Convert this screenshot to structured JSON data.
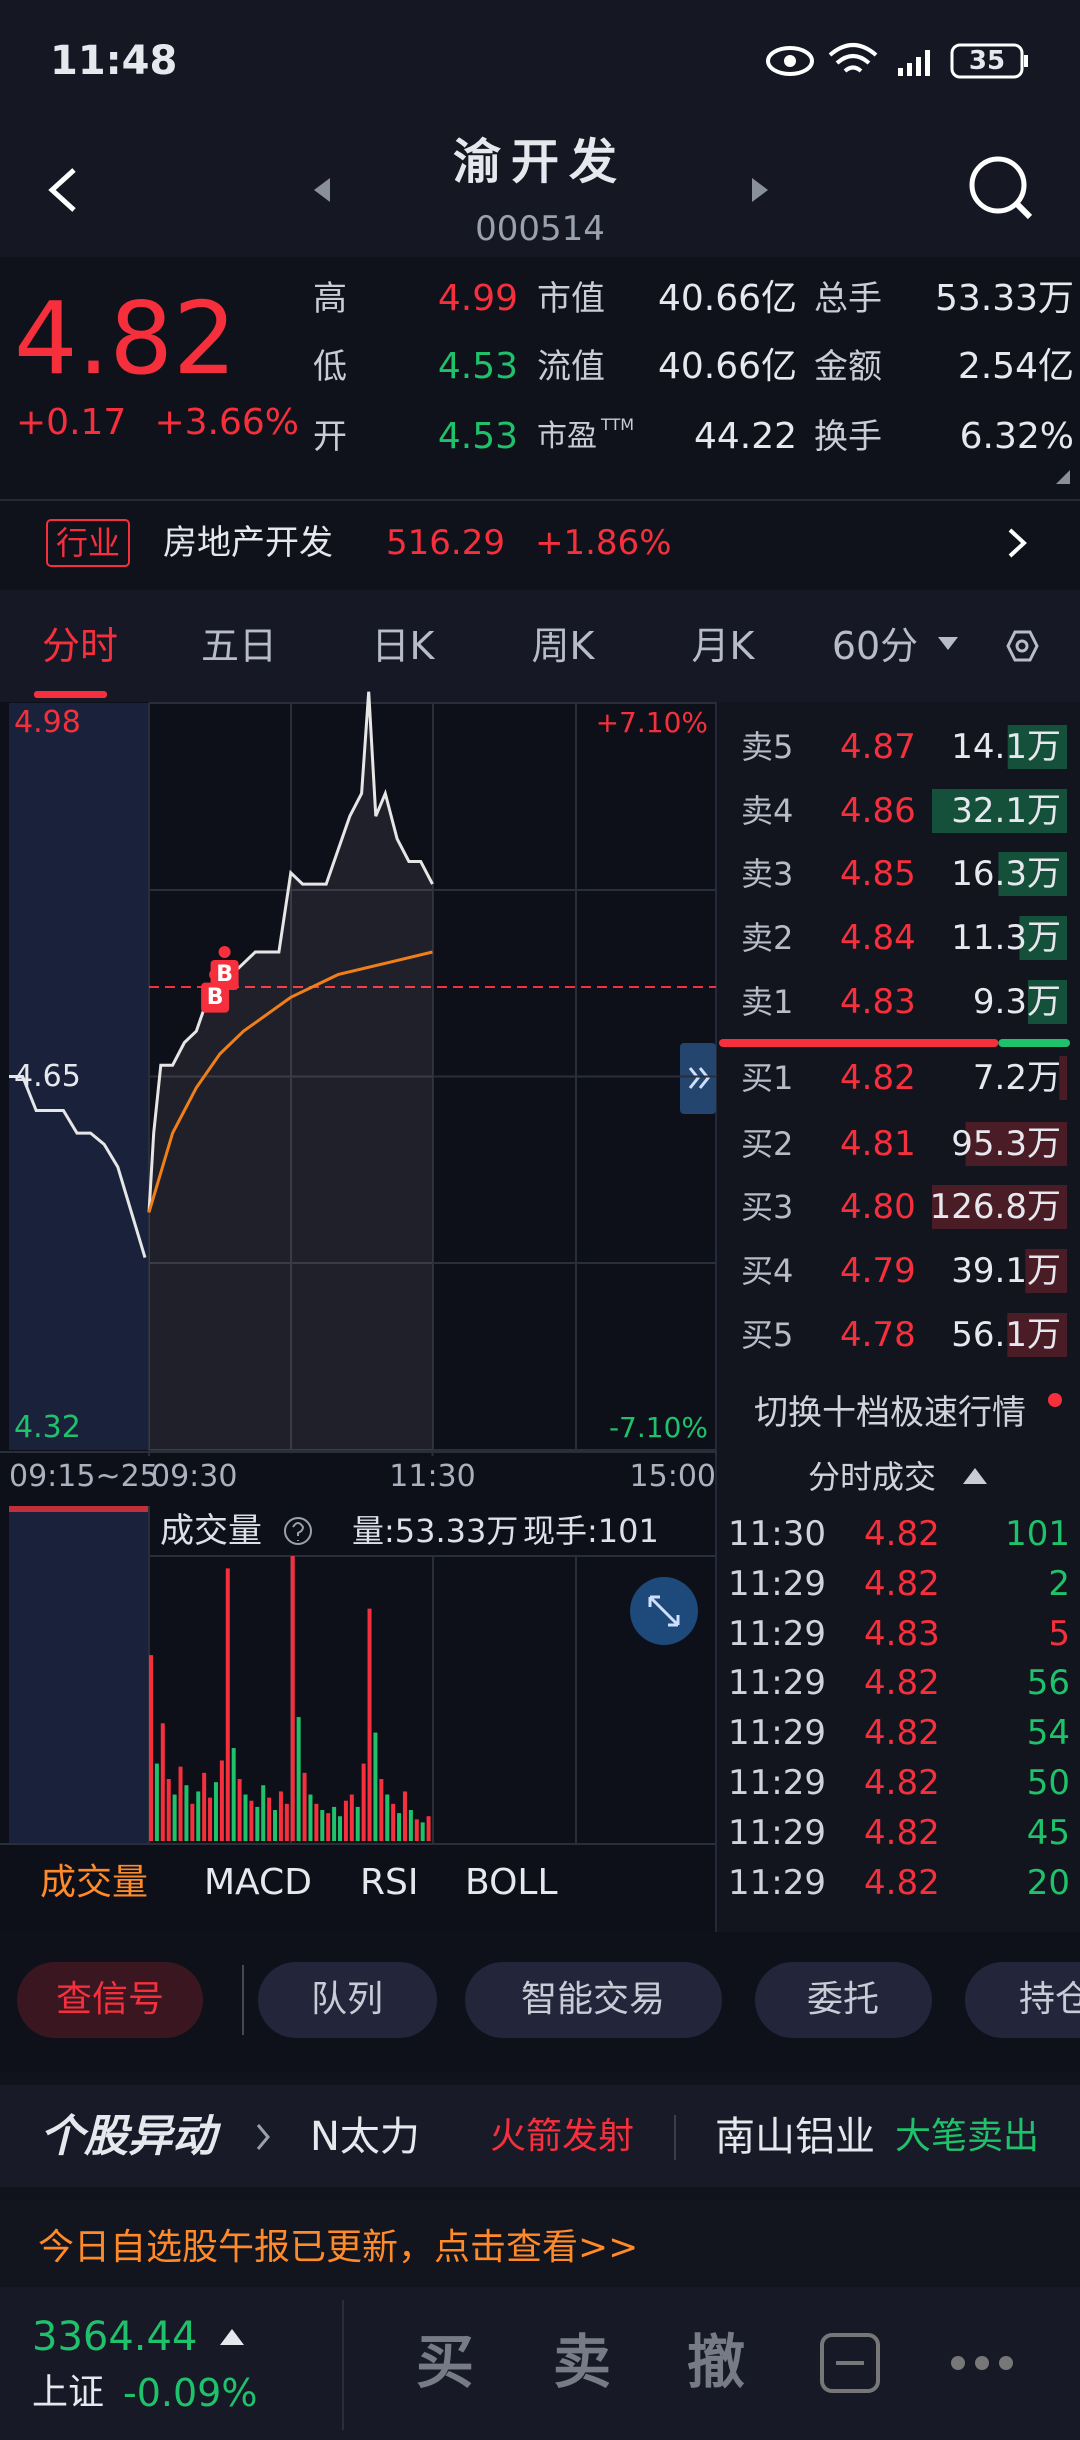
{
  "status_bar": {
    "time": "11:48",
    "battery": "35"
  },
  "header": {
    "title": "渝开发",
    "code": "000514"
  },
  "quote": {
    "price": "4.82",
    "change": "+0.17",
    "change_pct": "+3.66%",
    "stats": [
      {
        "label": "高",
        "value": "4.99",
        "dir": "up"
      },
      {
        "label": "市值",
        "value": "40.66亿"
      },
      {
        "label": "总手",
        "value": "53.33万"
      },
      {
        "label": "低",
        "value": "4.53",
        "dir": "down"
      },
      {
        "label": "流值",
        "value": "40.66亿"
      },
      {
        "label": "金额",
        "value": "2.54亿"
      },
      {
        "label": "开",
        "value": "4.53",
        "dir": "down"
      },
      {
        "label": "市盈",
        "sup": "TTM",
        "value": "44.22"
      },
      {
        "label": "换手",
        "value": "6.32%"
      }
    ]
  },
  "industry": {
    "tag": "行业",
    "name": "房地产开发",
    "index": "516.29",
    "change": "+1.86%"
  },
  "tabs": [
    "分时",
    "五日",
    "日K",
    "周K",
    "月K",
    "60分"
  ],
  "intraday": {
    "ylim": [
      4.32,
      4.98
    ],
    "yticks": [
      4.98,
      4.65,
      4.32
    ],
    "y2lim": [
      -7.1,
      7.1
    ],
    "y2ticks": [
      {
        "value": 7.1,
        "label": "+7.10%"
      },
      {
        "value": -7.1,
        "label": "-7.10%"
      }
    ],
    "xlim": [
      0,
      240
    ],
    "xticks": [
      {
        "value": 0,
        "label": "09:30"
      },
      {
        "value": 120,
        "label": "11:30"
      },
      {
        "value": 240,
        "label": "15:00"
      }
    ],
    "pre_label": "09:15~25",
    "premarket": {
      "x": [
        0,
        1,
        2,
        3,
        4,
        5,
        6,
        7,
        8,
        9,
        10
      ],
      "values": [
        4.65,
        4.65,
        4.62,
        4.62,
        4.62,
        4.6,
        4.6,
        4.59,
        4.57,
        4.53,
        4.49
      ]
    },
    "price": {
      "color": "#e6e6e6",
      "x": [
        0,
        2,
        5,
        10,
        15,
        20,
        25,
        30,
        35,
        40,
        45,
        55,
        60,
        65,
        75,
        80,
        85,
        90,
        93,
        96,
        100,
        105,
        110,
        115,
        120
      ],
      "values": [
        4.53,
        4.6,
        4.66,
        4.66,
        4.68,
        4.69,
        4.72,
        4.75,
        4.74,
        4.75,
        4.76,
        4.76,
        4.83,
        4.82,
        4.82,
        4.85,
        4.88,
        4.9,
        4.99,
        4.88,
        4.9,
        4.86,
        4.84,
        4.84,
        4.82
      ]
    },
    "average": {
      "color": "#f07f1a",
      "x": [
        0,
        10,
        20,
        30,
        40,
        60,
        80,
        100,
        120
      ],
      "values": [
        4.53,
        4.6,
        4.64,
        4.67,
        4.69,
        4.72,
        4.74,
        4.75,
        4.76
      ]
    },
    "markers": [
      {
        "x": 28,
        "price": 4.74,
        "label": "B"
      },
      {
        "x": 32,
        "price": 4.76,
        "label": "B"
      }
    ],
    "volume": {
      "label": "成交量",
      "total": "量:53.33万",
      "current": "现手:101",
      "x": [
        0,
        2.5,
        5,
        7.5,
        10,
        12.5,
        15,
        17.5,
        20,
        22.5,
        25,
        27.5,
        30,
        32.5,
        35,
        37.5,
        40,
        42.5,
        45,
        47.5,
        50,
        52.5,
        55,
        57.5,
        60,
        62.5,
        65,
        67.5,
        70,
        72.5,
        75,
        77.5,
        80,
        82.5,
        85,
        87.5,
        90,
        92.5,
        95,
        97.5,
        100,
        102.5,
        105,
        107.5,
        110,
        112.5,
        115,
        117.5
      ],
      "values": [
        6000,
        2500,
        3800,
        2000,
        1500,
        2400,
        1800,
        1200,
        1600,
        2200,
        1400,
        1900,
        2600,
        8800,
        3000,
        2000,
        1500,
        1300,
        1100,
        1800,
        1400,
        1000,
        1600,
        1200,
        9200,
        4000,
        2200,
        1500,
        1200,
        1000,
        900,
        1100,
        800,
        1300,
        1500,
        1100,
        2500,
        7500,
        3500,
        2000,
        1500,
        1200,
        900,
        1600,
        1000,
        700,
        600,
        800
      ],
      "up": [
        true,
        false,
        true,
        true,
        false,
        true,
        false,
        true,
        false,
        true,
        true,
        false,
        true,
        true,
        false,
        true,
        false,
        true,
        false,
        false,
        true,
        false,
        true,
        true,
        true,
        false,
        true,
        false,
        true,
        false,
        true,
        false,
        false,
        true,
        true,
        false,
        true,
        true,
        false,
        true,
        false,
        true,
        false,
        true,
        false,
        true,
        false,
        true
      ]
    }
  },
  "order_book": {
    "sell": [
      {
        "label": "卖5",
        "price": "4.87",
        "volume": 14.1,
        "volume_label": "14.1万"
      },
      {
        "label": "卖4",
        "price": "4.86",
        "volume": 32.1,
        "volume_label": "32.1万"
      },
      {
        "label": "卖3",
        "price": "4.85",
        "volume": 16.3,
        "volume_label": "16.3万"
      },
      {
        "label": "卖2",
        "price": "4.84",
        "volume": 11.3,
        "volume_label": "11.3万"
      },
      {
        "label": "卖1",
        "price": "4.83",
        "volume": 9.3,
        "volume_label": "9.3万"
      }
    ],
    "buy": [
      {
        "label": "买1",
        "price": "4.82",
        "volume": 7.2,
        "volume_label": "7.2万"
      },
      {
        "label": "买2",
        "price": "4.81",
        "volume": 95.3,
        "volume_label": "95.3万"
      },
      {
        "label": "买3",
        "price": "4.80",
        "volume": 126.8,
        "volume_label": "126.8万"
      },
      {
        "label": "买4",
        "price": "4.79",
        "volume": 39.1,
        "volume_label": "39.1万"
      },
      {
        "label": "买5",
        "price": "4.78",
        "volume": 56.1,
        "volume_label": "56.1万"
      }
    ],
    "switch": "切换十档极速行情"
  },
  "trades": {
    "title": "分时成交",
    "rows": [
      {
        "time": "11:30",
        "price": "4.82",
        "volume": "101",
        "side": "sell"
      },
      {
        "time": "11:29",
        "price": "4.82",
        "volume": "2",
        "side": "sell"
      },
      {
        "time": "11:29",
        "price": "4.83",
        "volume": "5",
        "side": "buy"
      },
      {
        "time": "11:29",
        "price": "4.82",
        "volume": "56",
        "side": "sell"
      },
      {
        "time": "11:29",
        "price": "4.82",
        "volume": "54",
        "side": "sell"
      },
      {
        "time": "11:29",
        "price": "4.82",
        "volume": "50",
        "side": "sell"
      },
      {
        "time": "11:29",
        "price": "4.82",
        "volume": "45",
        "side": "sell"
      },
      {
        "time": "11:29",
        "price": "4.82",
        "volume": "20",
        "side": "sell"
      }
    ]
  },
  "indicators": [
    "成交量",
    "MACD",
    "RSI",
    "BOLL"
  ],
  "actions": [
    "查信号",
    "队列",
    "智能交易",
    "委托",
    "持仓"
  ],
  "news": {
    "logo": "个股异动",
    "items": [
      {
        "stock": "N太力",
        "event": "火箭发射",
        "dir": "up"
      },
      {
        "stock": "南山铝业",
        "event": "大笔卖出",
        "dir": "down"
      }
    ]
  },
  "notice": "今日自选股午报已更新，点击查看>>",
  "index": {
    "value": "3364.44",
    "name": "上证",
    "change": "-0.09%"
  },
  "trade_buttons": [
    "买",
    "卖",
    "撤"
  ],
  "theme": {
    "up": "#f5303c",
    "down": "#1fc26b",
    "accent": "#ff8a2a"
  }
}
